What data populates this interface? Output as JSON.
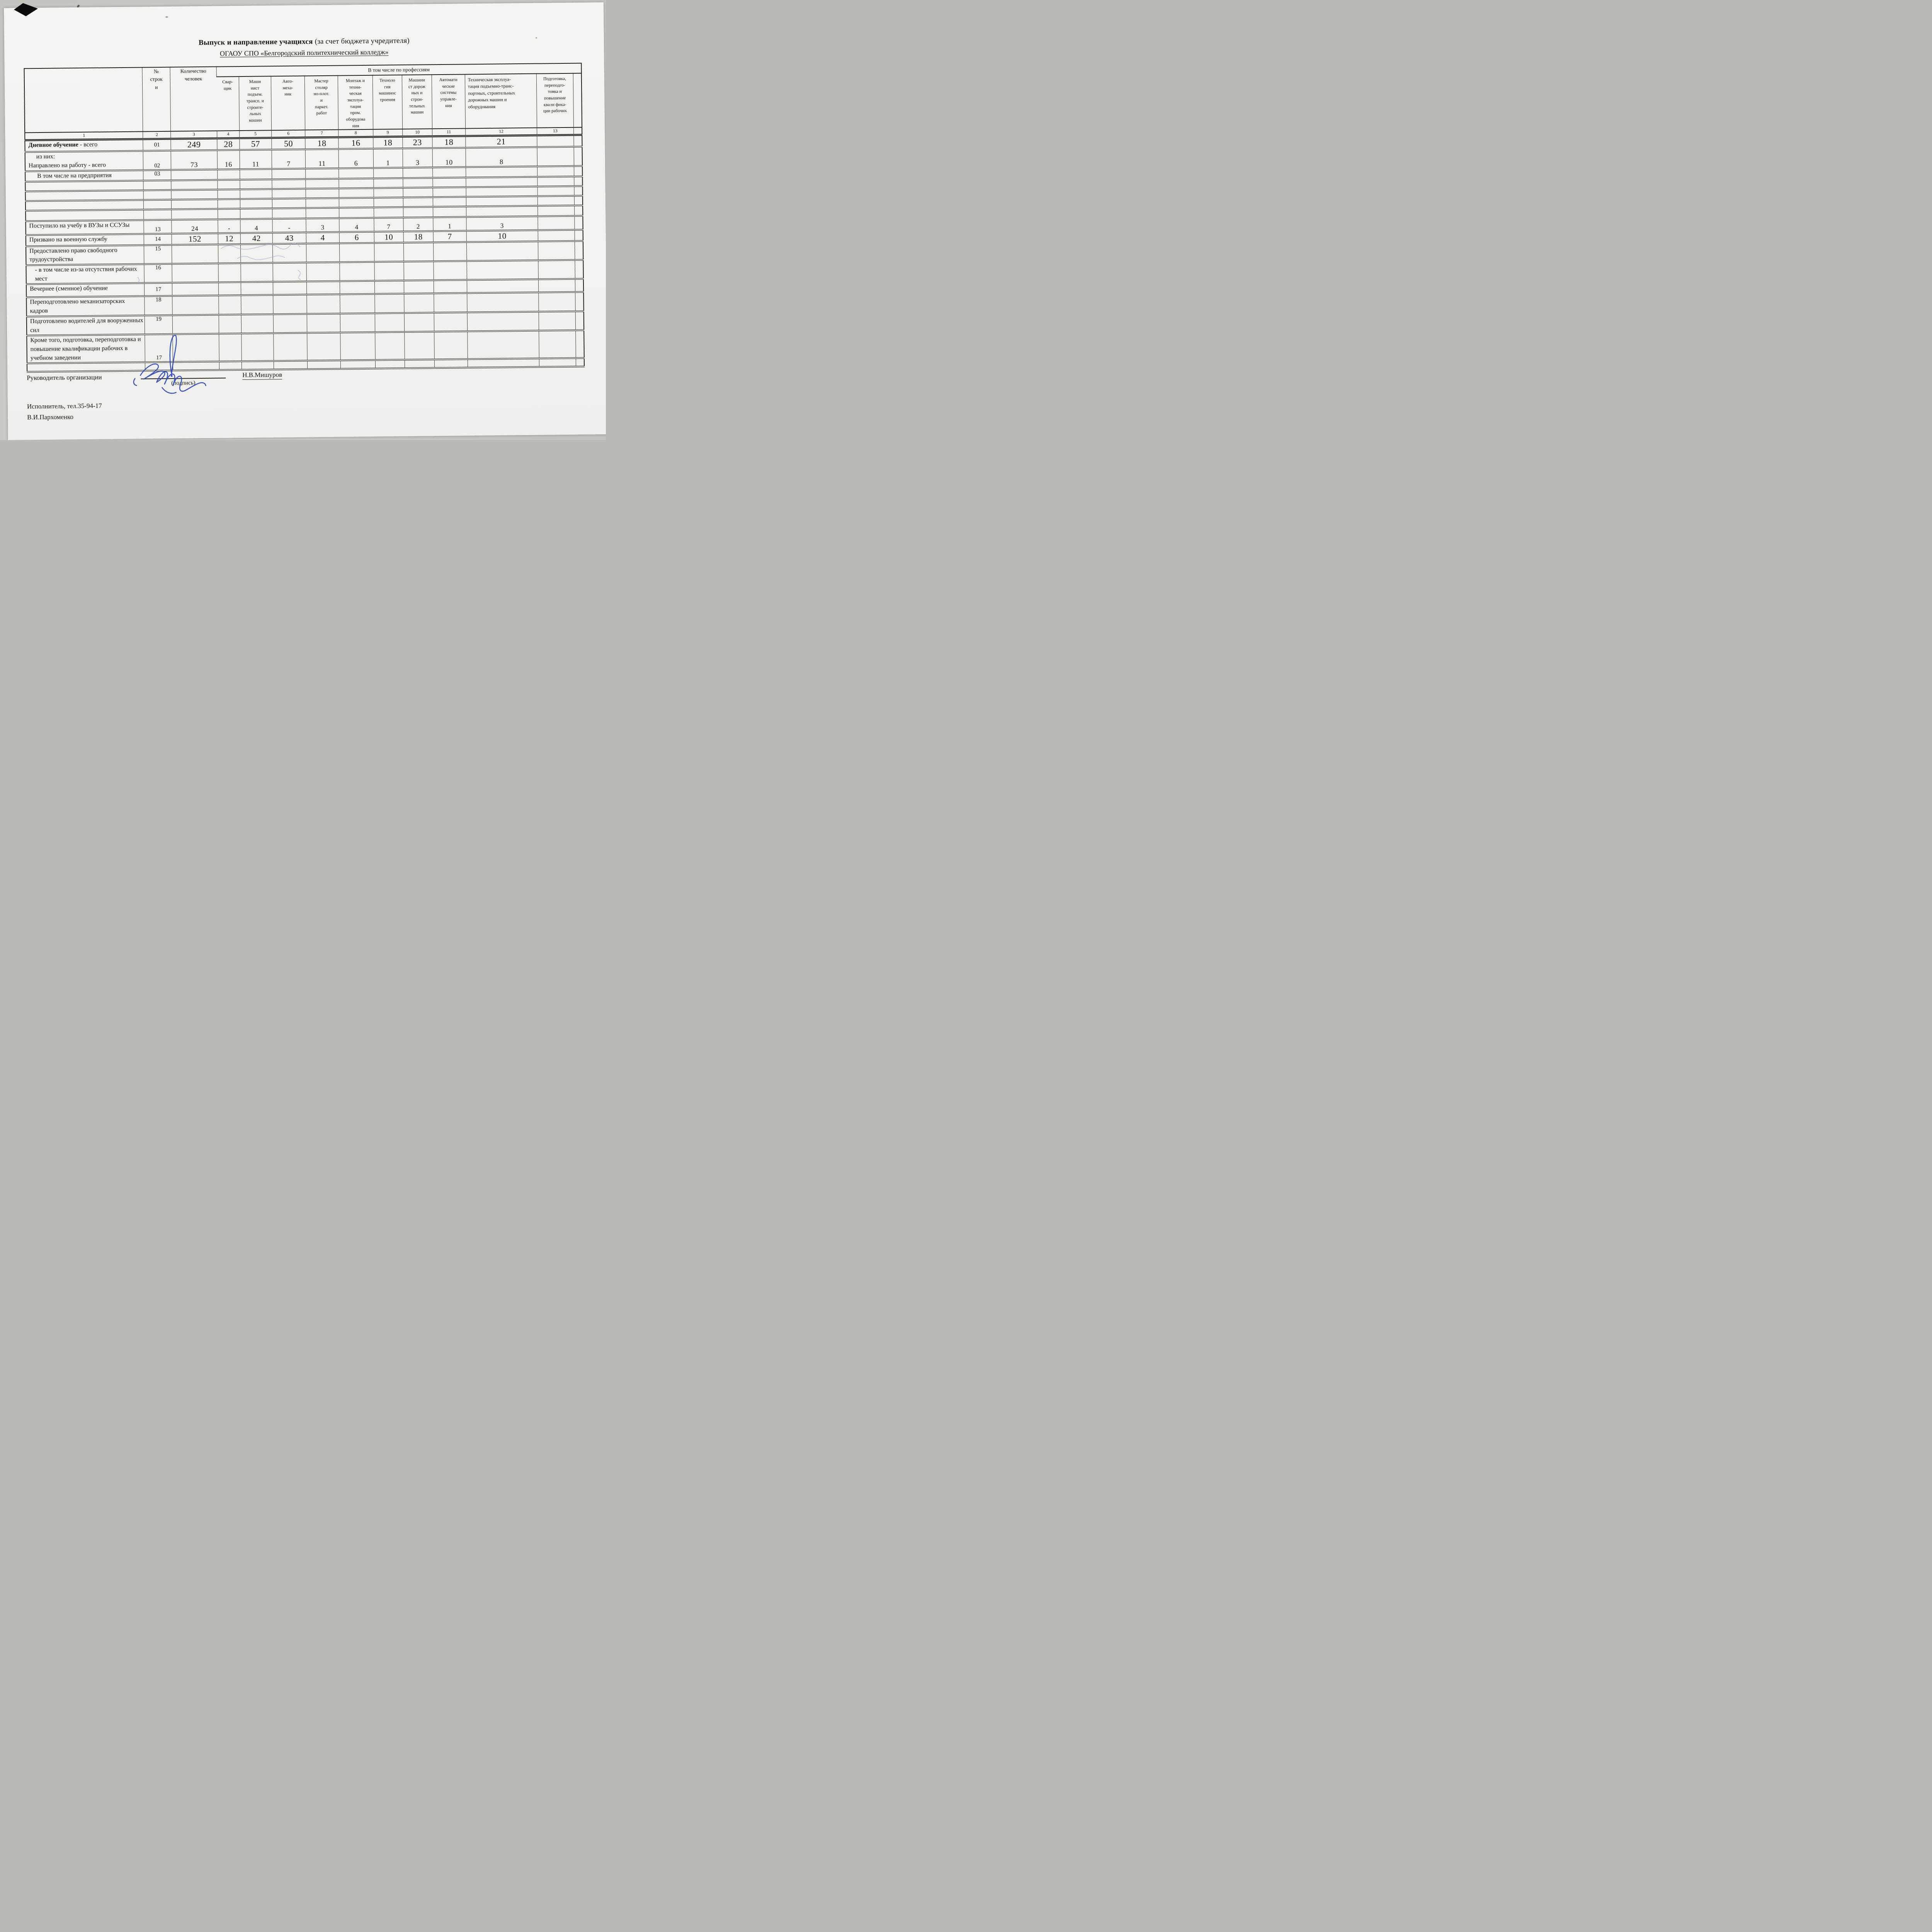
{
  "page": {
    "title_bold": "Выпуск и направление учащихся",
    "title_rest": " (за счет бюджета учредителя)",
    "subtitle": "ОГАОУ СПО «Белгородский политехнический колледж»"
  },
  "table": {
    "header": {
      "row_num_col": "№\nстрок\nи",
      "count_col": "Количество\nчеловек",
      "group": "В том числе по профессиям",
      "professions": [
        "Свар-\nщик",
        "Маши\nнист\nподъем.\nтрансп. и\nстроите-\nльных\nмашин",
        "Авто-\nмеха-\nник",
        "Мастер\nстоляр\nно-плот.\nи\nпаркет.\nработ",
        "Монтаж и\nтехни-\nческая\nэксплуа-\nтация\nпром.\nоборудова\nния",
        "Техноло\nгия\nмашинос\nтроения",
        "Машини\nст дорож\nных и\nстрои-\nтельных\nмашин",
        "Автомати\nческие\nсистемы\nуправле-\nния",
        "Техническая эксплуа-\nтация подъемно-транс-\nпортных, строительных\nдорожных машин и\nоборудования",
        "Подготовка,\nпереподго-\nтовка и\nповышение\nквали фика-\nции рабочих"
      ],
      "numbering": [
        "1",
        "2",
        "3",
        "4",
        "5",
        "6",
        "7",
        "8",
        "9",
        "10",
        "11",
        "12",
        "13",
        ""
      ]
    },
    "rows": [
      {
        "label_bold": "Дневное обучение",
        "label": " - всего",
        "indent": 0,
        "num": "01",
        "cells": [
          "249",
          "28",
          "57",
          "50",
          "18",
          "16",
          "18",
          "23",
          "18",
          "21",
          ""
        ],
        "h": 26,
        "size": 22,
        "nv": "center",
        "cv": "center",
        "lv": "center"
      },
      {
        "pre": "из них:",
        "label": "Направлено на работу - всего",
        "indent": 0,
        "num": "02",
        "cells": [
          "73",
          "16",
          "11",
          "7",
          "11",
          "6",
          "1",
          "3",
          "10",
          "8",
          ""
        ],
        "h": 40,
        "size": 18,
        "nv": "bottom",
        "cv": "bottom",
        "lv": "top"
      },
      {
        "label": "В том числе на предприятия",
        "indent": 22,
        "num": "03",
        "cells": [
          "",
          "",
          "",
          "",
          "",
          "",
          "",
          "",
          "",
          "",
          ""
        ],
        "h": 25,
        "size": 15,
        "nv": "top",
        "cv": "top",
        "lv": "top"
      },
      {
        "label": "",
        "indent": 0,
        "num": "",
        "cells": [
          "",
          "",
          "",
          "",
          "",
          "",
          "",
          "",
          "",
          "",
          ""
        ],
        "h": 25,
        "size": 15,
        "nv": "top",
        "cv": "top",
        "lv": "top"
      },
      {
        "label": "",
        "indent": 0,
        "num": "",
        "cells": [
          "",
          "",
          "",
          "",
          "",
          "",
          "",
          "",
          "",
          "",
          ""
        ],
        "h": 25,
        "size": 15,
        "nv": "top",
        "cv": "top",
        "lv": "top"
      },
      {
        "label": "",
        "indent": 0,
        "num": "",
        "cells": [
          "",
          "",
          "",
          "",
          "",
          "",
          "",
          "",
          "",
          "",
          ""
        ],
        "h": 25,
        "size": 15,
        "nv": "top",
        "cv": "top",
        "lv": "top"
      },
      {
        "label": "",
        "indent": 0,
        "num": "",
        "cells": [
          "",
          "",
          "",
          "",
          "",
          "",
          "",
          "",
          "",
          "",
          ""
        ],
        "h": 27,
        "size": 15,
        "nv": "top",
        "cv": "top",
        "lv": "top"
      },
      {
        "label": "Поступило на учебу в ВУЗы и ССУЗы",
        "indent": 0,
        "num": "13",
        "cells": [
          "24",
          "-",
          "4",
          "-",
          "3",
          "4",
          "7",
          "2",
          "1",
          "3",
          ""
        ],
        "h": 36,
        "size": 17,
        "nv": "bottom",
        "cv": "bottom",
        "lv": "top"
      },
      {
        "label": "Призвано на военную службу",
        "indent": 0,
        "num": "14",
        "cells": [
          "152",
          "12",
          "42",
          "43",
          "4",
          "6",
          "10",
          "18",
          "7",
          "10",
          ""
        ],
        "h": 26,
        "size": 21,
        "nv": "center",
        "cv": "center",
        "lv": "center"
      },
      {
        "label": "Предоставлено право свободного трудоустройства",
        "indent": 0,
        "num": "15",
        "cells": [
          "",
          "",
          "",
          "",
          "",
          "",
          "",
          "",
          "",
          "",
          ""
        ],
        "h": 48,
        "size": 15,
        "nv": "top",
        "cv": "top",
        "lv": "top"
      },
      {
        "label": "- в том числе из-за отсутствия рабочих мест",
        "indent": 14,
        "num": "16",
        "cells": [
          "",
          "",
          "",
          "",
          "",
          "",
          "",
          "",
          "",
          "",
          ""
        ],
        "h": 46,
        "size": 15,
        "nv": "top",
        "cv": "top",
        "lv": "top"
      },
      {
        "label": "Вечернее (сменное) обучение",
        "indent": 0,
        "num": "17",
        "cells": [
          "",
          "",
          "",
          "",
          "",
          "",
          "",
          "",
          "",
          "",
          ""
        ],
        "h": 34,
        "size": 15,
        "nv": "center",
        "cv": "center",
        "lv": "center"
      },
      {
        "label": "Переподготовлено механизаторских кадров",
        "indent": 0,
        "num": "18",
        "cells": [
          "",
          "",
          "",
          "",
          "",
          "",
          "",
          "",
          "",
          "",
          ""
        ],
        "h": 46,
        "size": 15,
        "nv": "top",
        "cv": "top",
        "lv": "top"
      },
      {
        "label": "Подготовлено водителей для вооруженных сил",
        "indent": 0,
        "num": "19",
        "cells": [
          "",
          "",
          "",
          "",
          "",
          "",
          "",
          "",
          "",
          "",
          ""
        ],
        "h": 46,
        "size": 15,
        "nv": "top",
        "cv": "top",
        "lv": "top"
      },
      {
        "label": "Кроме того, подготовка, переподготовка и повышение квалификации рабочих в учебном заведении",
        "indent": 0,
        "num": "17",
        "cells": [
          "",
          "",
          "",
          "",
          "",
          "",
          "",
          "",
          "",
          "",
          ""
        ],
        "h": 66,
        "size": 15,
        "nv": "bottom",
        "cv": "bottom",
        "lv": "top"
      },
      {
        "label": "",
        "indent": 0,
        "num": "",
        "cells": [
          "",
          "",
          "",
          "",
          "",
          "",
          "",
          "",
          "",
          "",
          ""
        ],
        "h": 22,
        "size": 15,
        "nv": "top",
        "cv": "top",
        "lv": "top"
      }
    ]
  },
  "footer": {
    "head_label": "Руководитель организации",
    "sign_caption": "(подпись)",
    "head_name": "Н.В.Мишуров",
    "executor_line1": "Исполнитель, тел.35-94-17",
    "executor_line2": "В.И.Пархоменко"
  }
}
